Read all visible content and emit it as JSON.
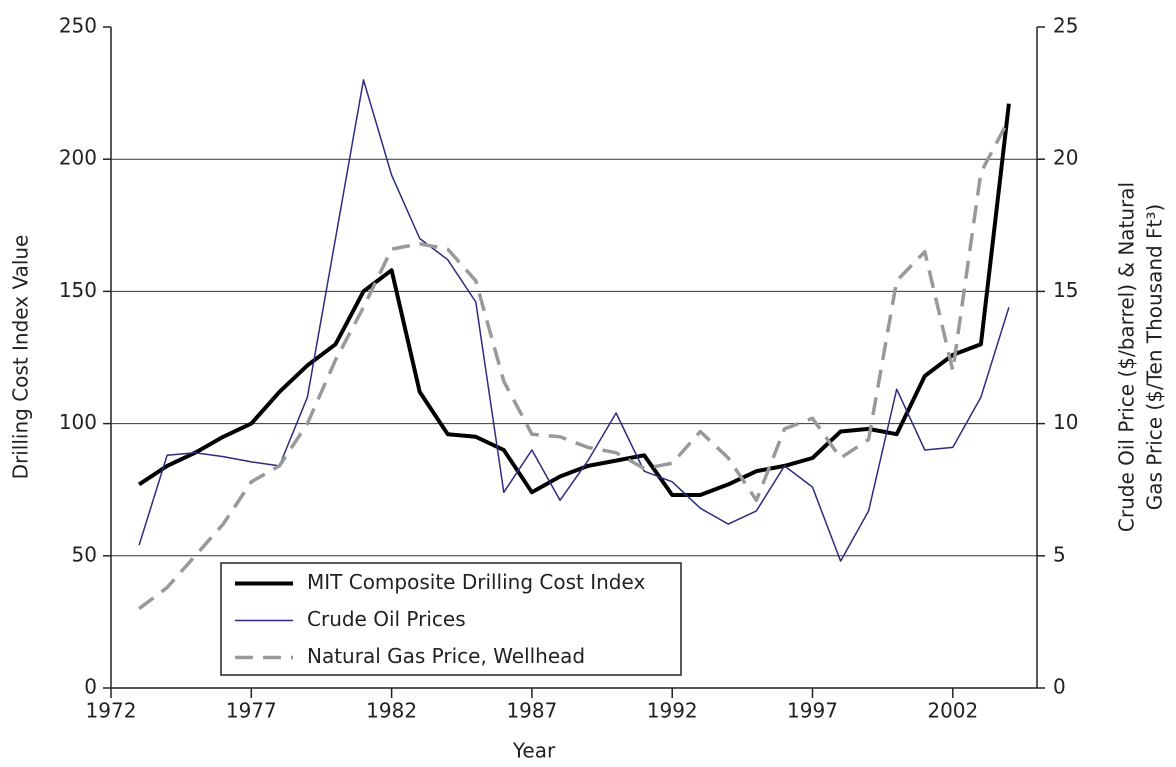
{
  "chart_data": {
    "type": "line",
    "x_label": "Year",
    "y_label": "Drilling Cost Index Value",
    "y2_label": [
      "Crude Oil Price ($/barrel) & Natural",
      "Gas Price ($/Ten Thousand Ft³)"
    ],
    "x": [
      1973,
      1974,
      1975,
      1976,
      1977,
      1978,
      1979,
      1980,
      1981,
      1982,
      1983,
      1984,
      1985,
      1986,
      1987,
      1988,
      1989,
      1990,
      1991,
      1992,
      1993,
      1994,
      1995,
      1996,
      1997,
      1998,
      1999,
      2000,
      2001,
      2002,
      2003,
      2004
    ],
    "xlim": [
      1972,
      2005
    ],
    "xticks": [
      1972,
      1977,
      1982,
      1987,
      1992,
      1997,
      2002
    ],
    "ylim": [
      0,
      250
    ],
    "yticks": [
      0,
      50,
      100,
      150,
      200,
      250
    ],
    "y2lim": [
      0,
      25
    ],
    "y2ticks": [
      0,
      5,
      10,
      15,
      20,
      25
    ],
    "grid": true,
    "legend": "bottom-left",
    "series": [
      {
        "name": "MIT Composite Drilling Cost Index",
        "color": "#000000",
        "line_width": 4,
        "line_style": "solid",
        "axis": "y",
        "values": [
          77,
          84,
          89,
          95,
          100,
          112,
          122,
          130,
          150,
          158,
          112,
          96,
          95,
          90,
          74,
          80,
          84,
          86,
          88,
          73,
          73,
          77,
          82,
          84,
          87,
          97,
          98,
          96,
          118,
          126,
          130,
          221
        ]
      },
      {
        "name": "Crude Oil Prices",
        "color": "#2b2d7f",
        "line_width": 1.5,
        "line_style": "solid",
        "axis": "y2",
        "values": [
          5.4,
          8.8,
          8.9,
          8.75,
          8.55,
          8.4,
          11.0,
          17.0,
          23.0,
          19.4,
          17.0,
          16.2,
          14.6,
          7.4,
          9.0,
          7.1,
          8.6,
          10.4,
          8.2,
          7.8,
          6.8,
          6.2,
          6.7,
          8.4,
          7.6,
          4.8,
          6.7,
          11.3,
          9.0,
          9.1,
          11.0,
          14.4
        ]
      },
      {
        "name": "Natural Gas Price, Wellhead",
        "color": "#999999",
        "line_width": 3.5,
        "line_style": "dashed",
        "axis": "y2",
        "values": [
          3.0,
          3.8,
          5.0,
          6.2,
          7.8,
          8.4,
          10.0,
          12.4,
          14.4,
          16.6,
          16.8,
          16.6,
          15.4,
          11.6,
          9.6,
          9.5,
          9.1,
          8.9,
          8.3,
          8.5,
          9.7,
          8.7,
          7.1,
          9.8,
          10.2,
          8.7,
          9.4,
          15.4,
          16.5,
          12.0,
          19.5,
          21.5
        ]
      }
    ]
  }
}
